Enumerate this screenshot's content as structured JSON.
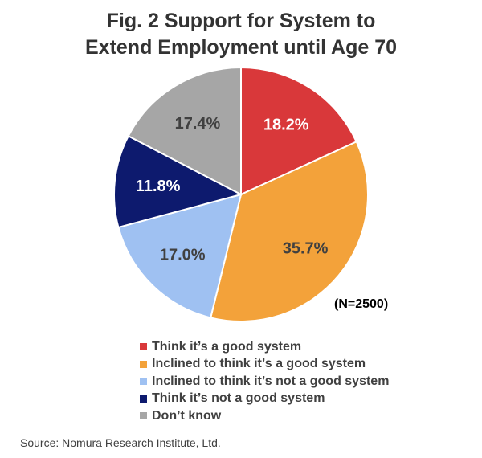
{
  "chart_data": {
    "type": "pie",
    "title_line1": "Fig. 2  Support for System to",
    "title_line2": "Extend Employment until Age 70",
    "n_label": "(N=2500)",
    "source": "Source: Nomura Research Institute, Ltd.",
    "slices": [
      {
        "label": "Think it’s a good system",
        "value": 18.2,
        "value_label": "18.2%",
        "color": "#d9383a",
        "text_color": "#ffffff"
      },
      {
        "label": "Inclined to think it’s a good system",
        "value": 35.7,
        "value_label": "35.7%",
        "color": "#f3a23a",
        "text_color": "#404040"
      },
      {
        "label": "Inclined to think it’s not a good system",
        "value": 17.0,
        "value_label": "17.0%",
        "color": "#9fc1f2",
        "text_color": "#404040"
      },
      {
        "label": "Think it’s not a good system",
        "value": 11.8,
        "value_label": "11.8%",
        "color": "#0d1a6e",
        "text_color": "#ffffff"
      },
      {
        "label": "Don’t know",
        "value": 17.4,
        "value_label": "17.4%",
        "color": "#a6a6a6",
        "text_color": "#404040"
      }
    ],
    "start_angle": "12 o'clock",
    "direction": "clockwise",
    "legend_position": "bottom"
  }
}
